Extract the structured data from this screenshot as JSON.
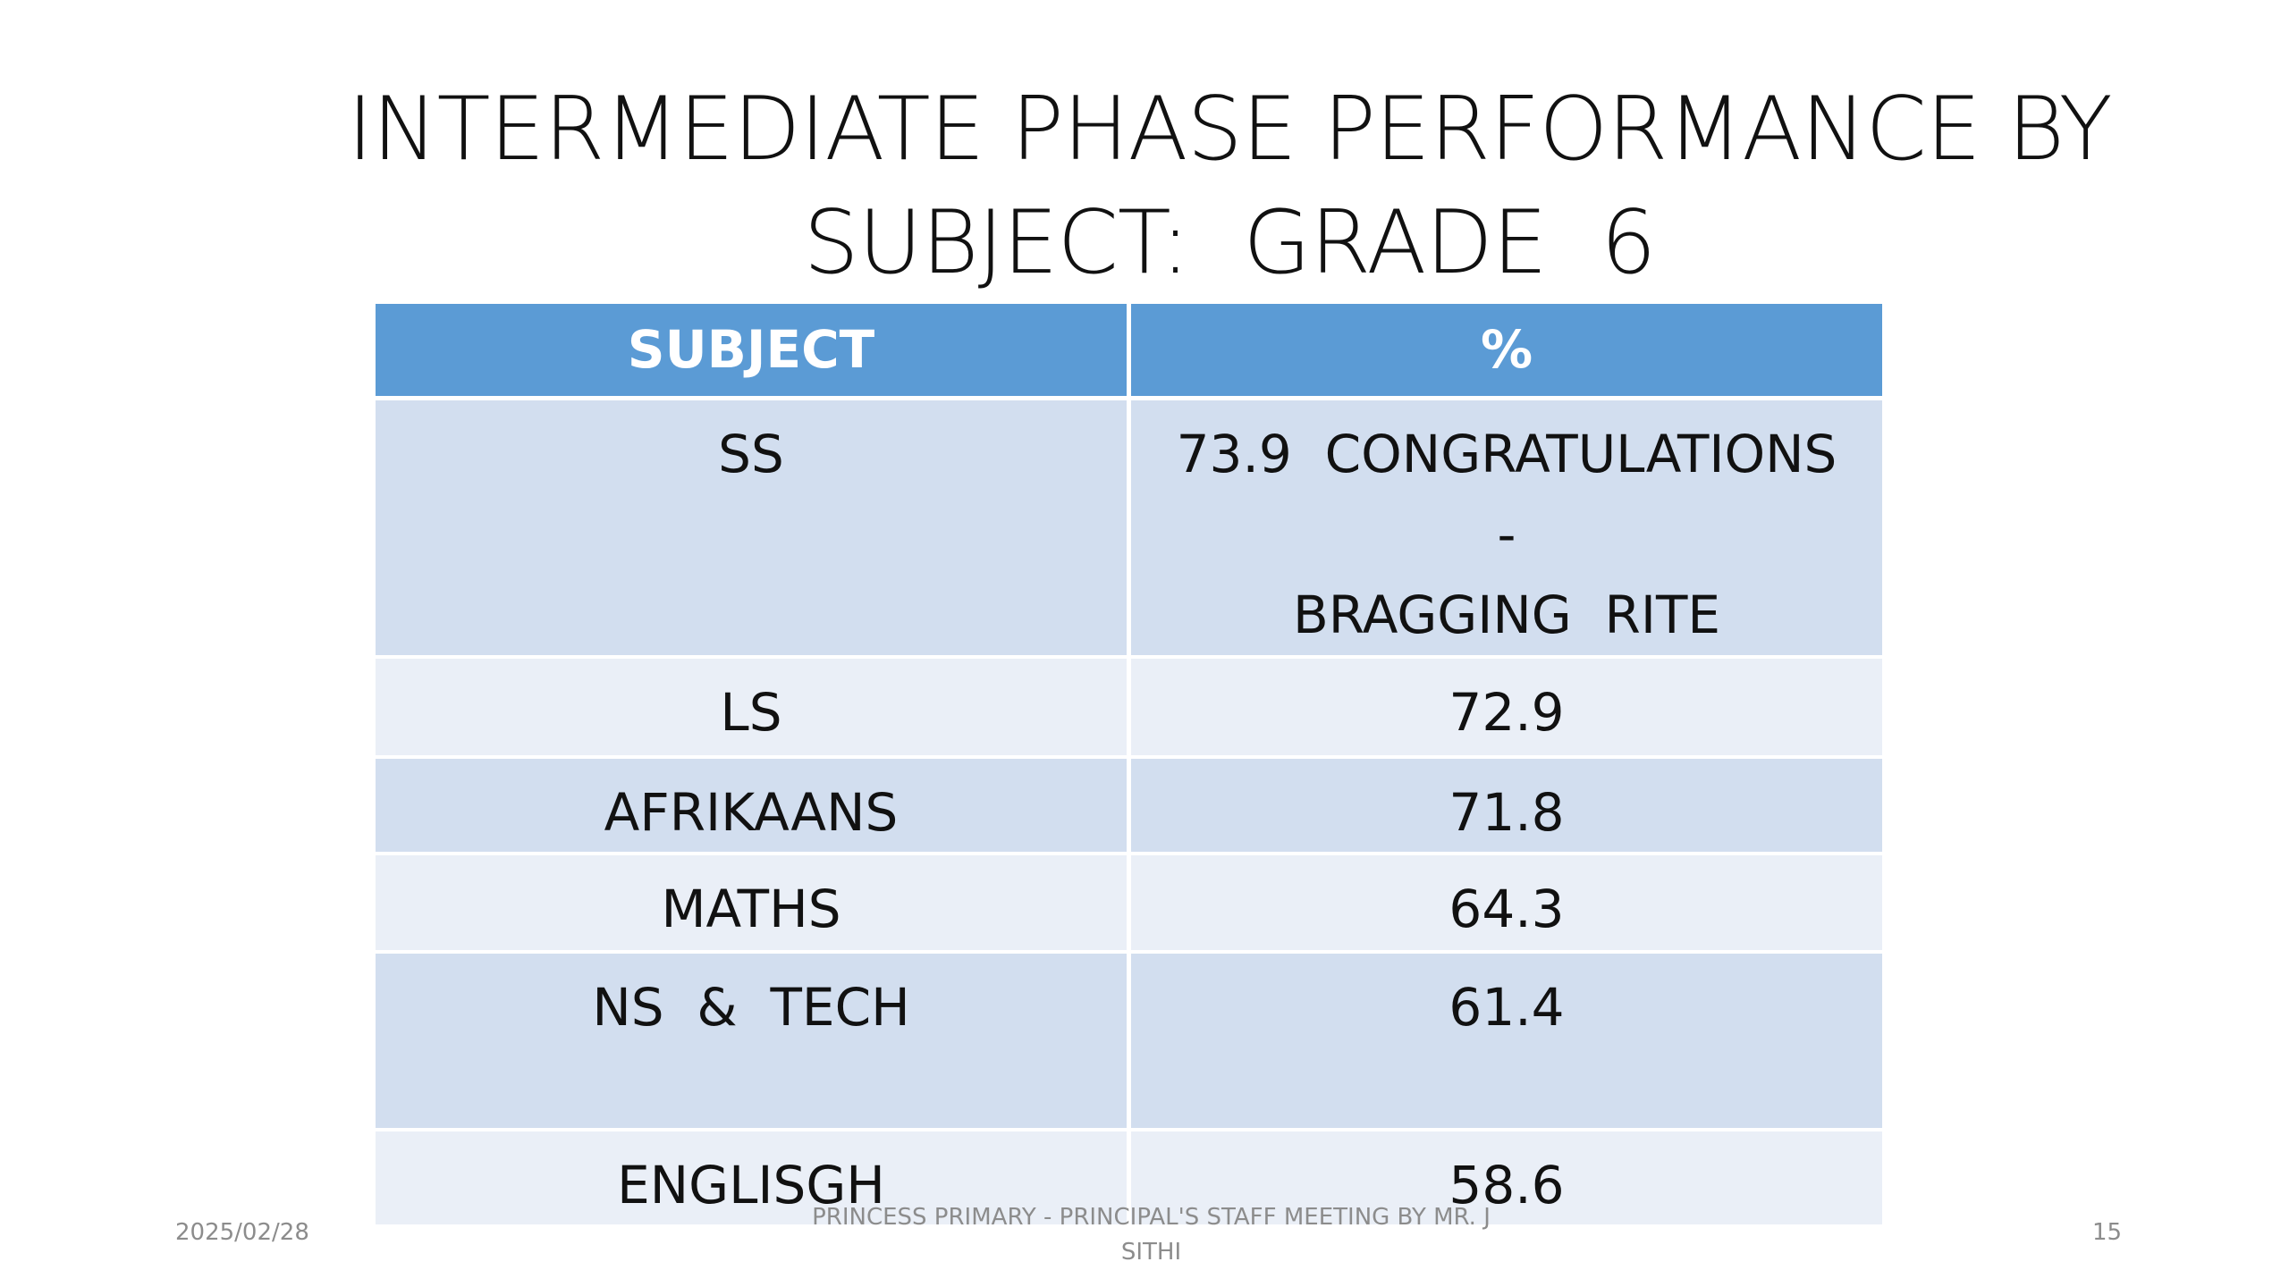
{
  "header": {
    "title_lines": [
      "INTERMEDIATE PHASE PERFORMANCE BY",
      "SUBJECT:  GRADE  6"
    ]
  },
  "table": {
    "columns": [
      "SUBJECT",
      "%"
    ],
    "rows": [
      [
        [
          "SS"
        ],
        [
          "73.9  CONGRATULATIONS",
          "-",
          "BRAGGING  RITE"
        ]
      ],
      [
        [
          "LS"
        ],
        [
          "72.9"
        ]
      ],
      [
        [
          "AFRIKAANS"
        ],
        [
          "71.8"
        ]
      ],
      [
        [
          "MATHS"
        ],
        [
          "64.3"
        ]
      ],
      [
        [
          "NS  &  TECH"
        ],
        [
          "61.4"
        ]
      ],
      [
        [
          "ENGLISGH"
        ],
        [
          "58.6"
        ]
      ]
    ]
  },
  "footer": {
    "date": "2025/02/28",
    "center_lines": [
      "PRINCESS PRIMARY - PRINCIPAL'S STAFF MEETING BY MR. J",
      "SITHI"
    ],
    "page": "15"
  }
}
